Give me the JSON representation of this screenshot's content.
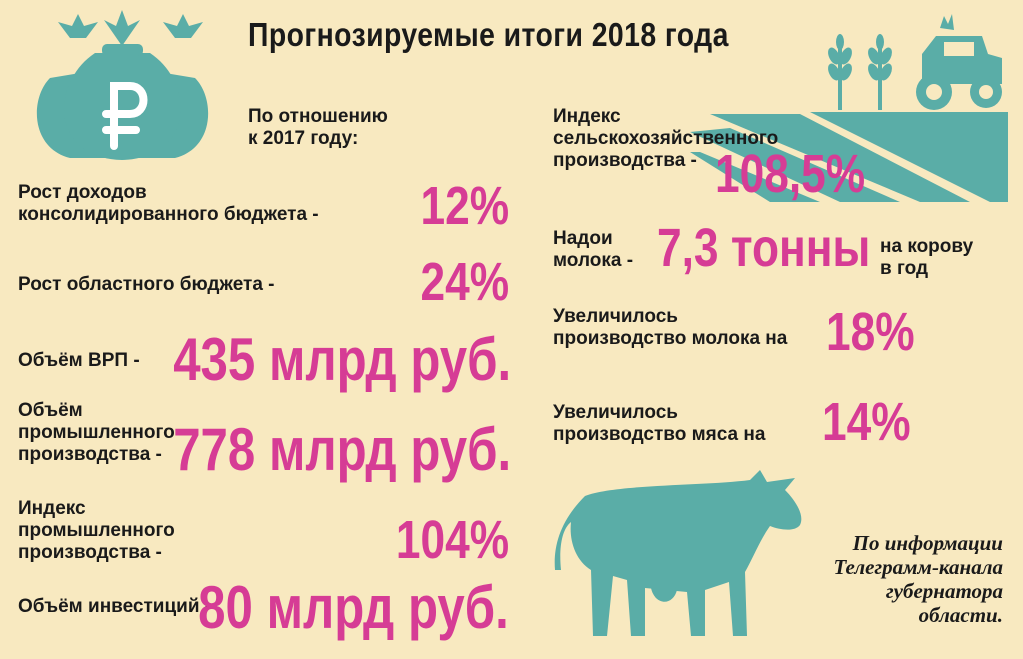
{
  "title": "Прогнозируемые итоги 2018 года",
  "subtitle": "По отношению\nк 2017 году:",
  "left_items": [
    {
      "label": "Рост доходов\nконсолидированного бюджета -",
      "value": "12%"
    },
    {
      "label": "Рост областного бюджета -",
      "value": "24%"
    },
    {
      "label": "Объём ВРП -",
      "value": "435 млрд руб."
    },
    {
      "label": "Объём\nпромышленного\nпроизводства  -",
      "value": "778 млрд руб."
    },
    {
      "label": "Индекс\nпромышленного\nпроизводства -",
      "value": "104%"
    },
    {
      "label": "Объём инвестиций -",
      "value": "80 млрд руб."
    }
  ],
  "right_items": [
    {
      "label": "Индекс\nсельскохозяйственного\nпроизводства -",
      "value": "108,5%"
    },
    {
      "label": "Надои\nмолока -",
      "value": "7,3 тонны",
      "suffix": "на корову\nв год"
    },
    {
      "label": "Увеличилось\nпроизводство молока на",
      "value": "18%"
    },
    {
      "label": "Увеличилось\nпроизводство  мяса на",
      "value": "14%"
    }
  ],
  "source": "По информации\nТелеграмм-канала\nгубернатора\nобласти.",
  "icons": [
    "money-bags-icon",
    "ruble-icon",
    "wheat-icon",
    "tractor-icon",
    "field-icon",
    "cow-icon"
  ],
  "colors": {
    "background": "#f8e9c0",
    "accent": "#d63c95",
    "teal": "#5aada7",
    "text": "#1a1a1a"
  }
}
